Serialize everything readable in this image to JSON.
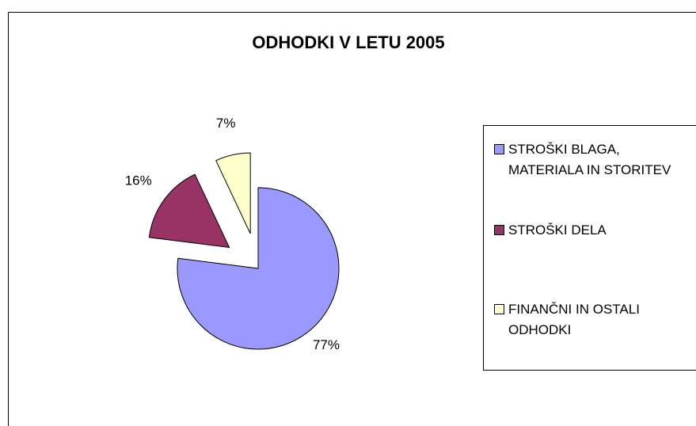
{
  "chart_data": {
    "type": "pie",
    "title": "ODHODKI  V LETU 2005",
    "categories": [
      "STROŠKI BLAGA, MATERIALA IN STORITEV",
      "STROŠKI DELA",
      "FINANČNI IN OSTALI ODHODKI"
    ],
    "values": [
      77,
      16,
      7
    ],
    "value_labels": [
      "77%",
      "16%",
      "7%"
    ],
    "colors": [
      "#9999ff",
      "#993366",
      "#ffffcc"
    ]
  }
}
